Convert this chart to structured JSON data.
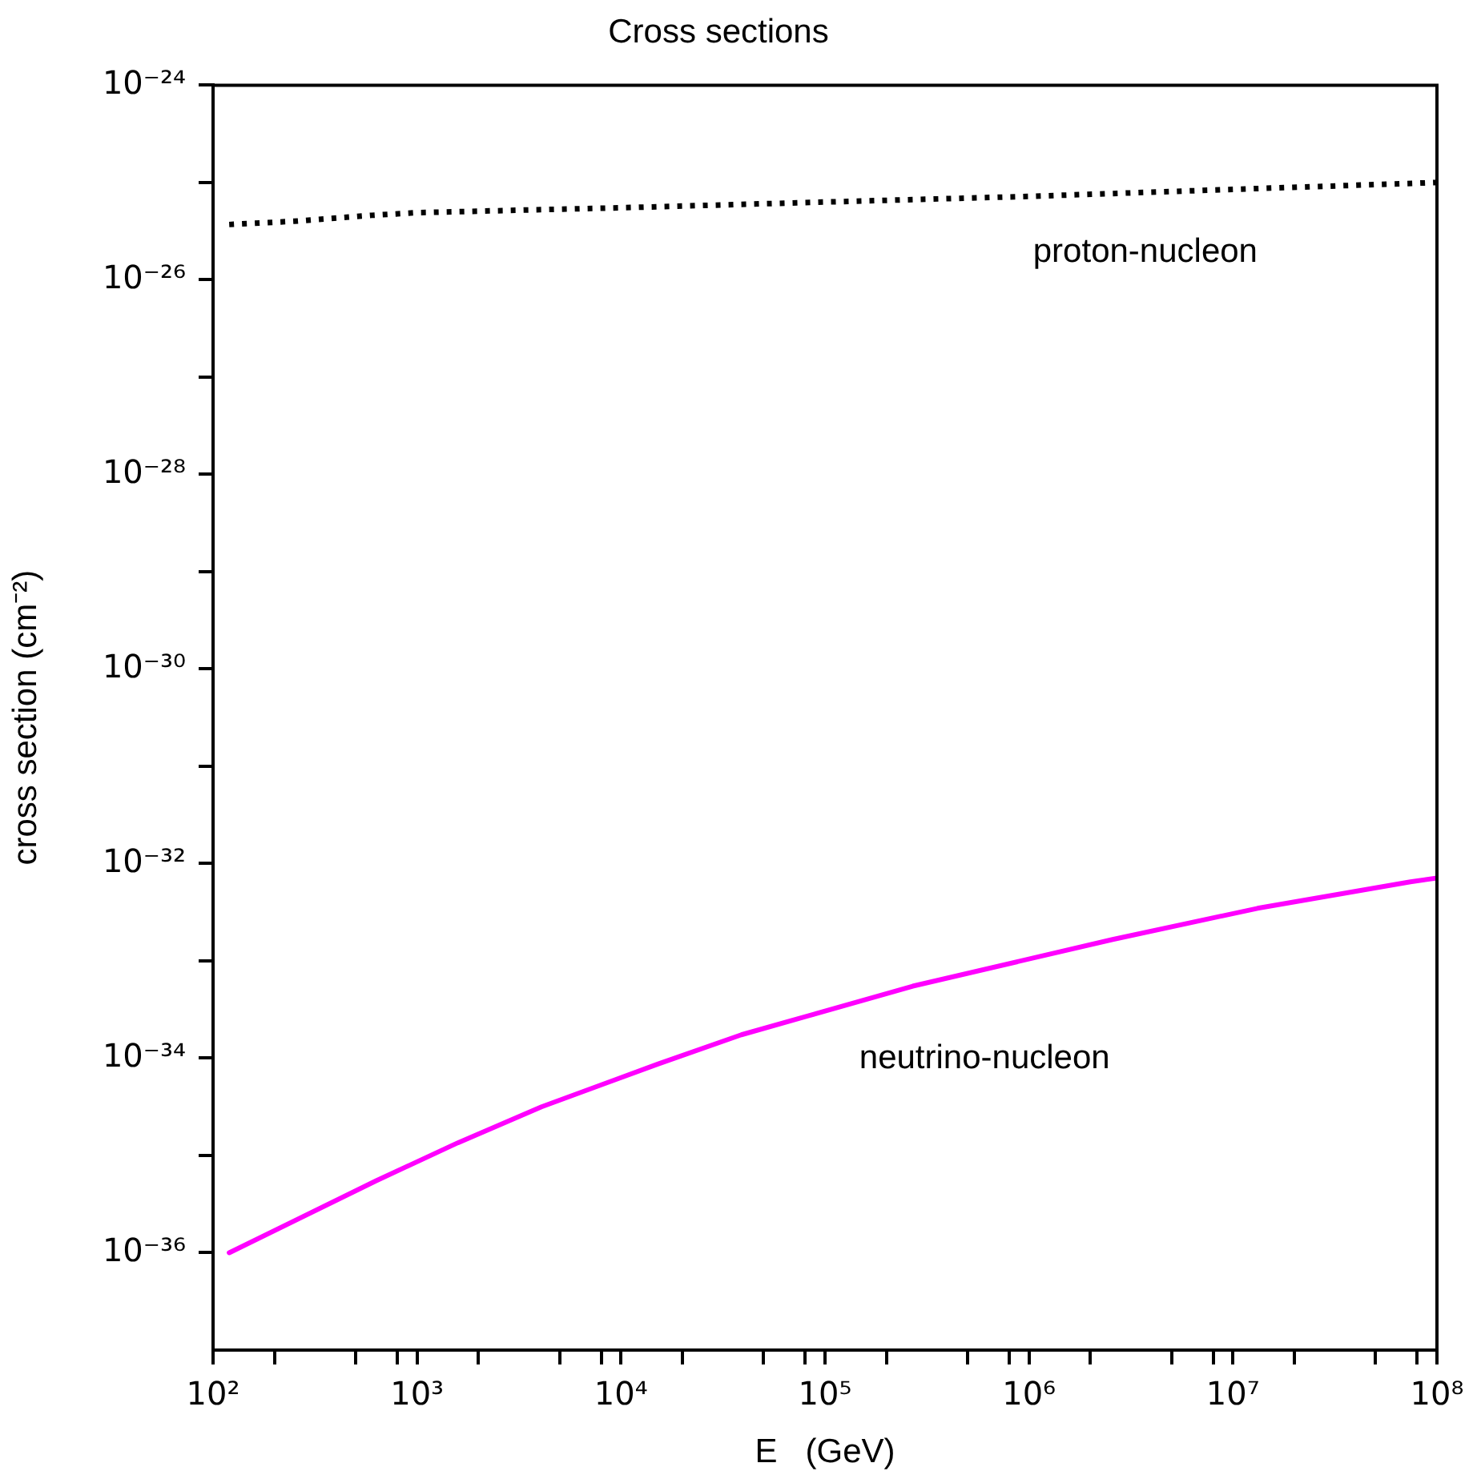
{
  "chart_data": {
    "type": "line",
    "title": "Cross sections",
    "xlabel": "E   (GeV)",
    "ylabel": "cross section (cm⁻²)",
    "log": "xy",
    "grid": false,
    "legend": false,
    "marker": "none",
    "xlim": [
      100,
      100000000
    ],
    "ylim": [
      1e-37,
      1e-24
    ],
    "xticks": [
      {
        "value": 100,
        "label": "10²"
      },
      {
        "value": 200,
        "label": null
      },
      {
        "value": 500,
        "label": null
      },
      {
        "value": 800,
        "label": null
      },
      {
        "value": 1000,
        "label": "10³"
      },
      {
        "value": 2000,
        "label": null
      },
      {
        "value": 5000,
        "label": null
      },
      {
        "value": 8000,
        "label": null
      },
      {
        "value": 10000,
        "label": "10⁴"
      },
      {
        "value": 20000,
        "label": null
      },
      {
        "value": 50000,
        "label": null
      },
      {
        "value": 80000,
        "label": null
      },
      {
        "value": 100000,
        "label": "10⁵"
      },
      {
        "value": 200000,
        "label": null
      },
      {
        "value": 500000,
        "label": null
      },
      {
        "value": 800000,
        "label": null
      },
      {
        "value": 1000000,
        "label": "10⁶"
      },
      {
        "value": 2000000,
        "label": null
      },
      {
        "value": 5000000,
        "label": null
      },
      {
        "value": 8000000,
        "label": null
      },
      {
        "value": 10000000,
        "label": "10⁷"
      },
      {
        "value": 20000000,
        "label": null
      },
      {
        "value": 50000000,
        "label": null
      },
      {
        "value": 80000000,
        "label": null
      },
      {
        "value": 100000000,
        "label": "10⁸"
      }
    ],
    "yticks": [
      {
        "value": 1e-24,
        "label": "10⁻²⁴"
      },
      {
        "value": 1e-25,
        "label": null
      },
      {
        "value": 1e-26,
        "label": "10⁻²⁶"
      },
      {
        "value": 1e-27,
        "label": null
      },
      {
        "value": 1e-28,
        "label": "10⁻²⁸"
      },
      {
        "value": 1e-29,
        "label": null
      },
      {
        "value": 1e-30,
        "label": "10⁻³⁰"
      },
      {
        "value": 1e-31,
        "label": null
      },
      {
        "value": 1e-32,
        "label": "10⁻³²"
      },
      {
        "value": 1e-33,
        "label": null
      },
      {
        "value": 1e-34,
        "label": "10⁻³⁴"
      },
      {
        "value": 1e-35,
        "label": null
      },
      {
        "value": 1e-36,
        "label": "10⁻³⁶"
      }
    ],
    "series": [
      {
        "name": "proton-nucleon",
        "color": "#000000",
        "line_style": "dotted",
        "x": [
          120,
          250,
          600,
          1000,
          10000,
          100000,
          1000000,
          10000000,
          100000000
        ],
        "values": [
          3.7e-26,
          4e-26,
          4.6e-26,
          4.9e-26,
          5.5e-26,
          6.3e-26,
          7.2e-26,
          8.5e-26,
          1e-25
        ]
      },
      {
        "name": "neutrino-nucleon",
        "color": "#ff00ff",
        "line_style": "solid",
        "x": [
          120,
          631,
          1585,
          4074,
          15136,
          38905,
          269153,
          2570000,
          13200000,
          74100000,
          100000000
        ],
        "values": [
          1e-36,
          5.5e-36,
          1.35e-35,
          3.16e-35,
          8.7e-35,
          1.74e-34,
          5.5e-34,
          1.66e-33,
          3.47e-33,
          6.5e-33,
          7.1e-33
        ]
      }
    ]
  }
}
